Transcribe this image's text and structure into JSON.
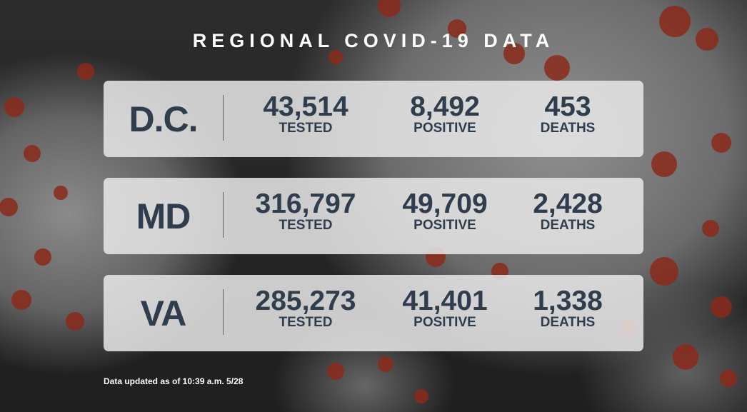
{
  "title": "REGIONAL COVID-19 DATA",
  "rows": [
    {
      "state": "D.C.",
      "tested": "43,514",
      "positive": "8,492",
      "deaths": "453"
    },
    {
      "state": "MD",
      "tested": "316,797",
      "positive": "49,709",
      "deaths": "2,428"
    },
    {
      "state": "VA",
      "tested": "285,273",
      "positive": "41,401",
      "deaths": "1,338"
    }
  ],
  "labels": {
    "tested": "TESTED",
    "positive": "POSITIVE",
    "deaths": "DEATHS"
  },
  "footnote": "Data updated as of 10:39 a.m. 5/28",
  "colors": {
    "text_dark": "#2f3d4d",
    "panel": "#e8e8e8",
    "virus_spike": "#8a2a1a"
  }
}
